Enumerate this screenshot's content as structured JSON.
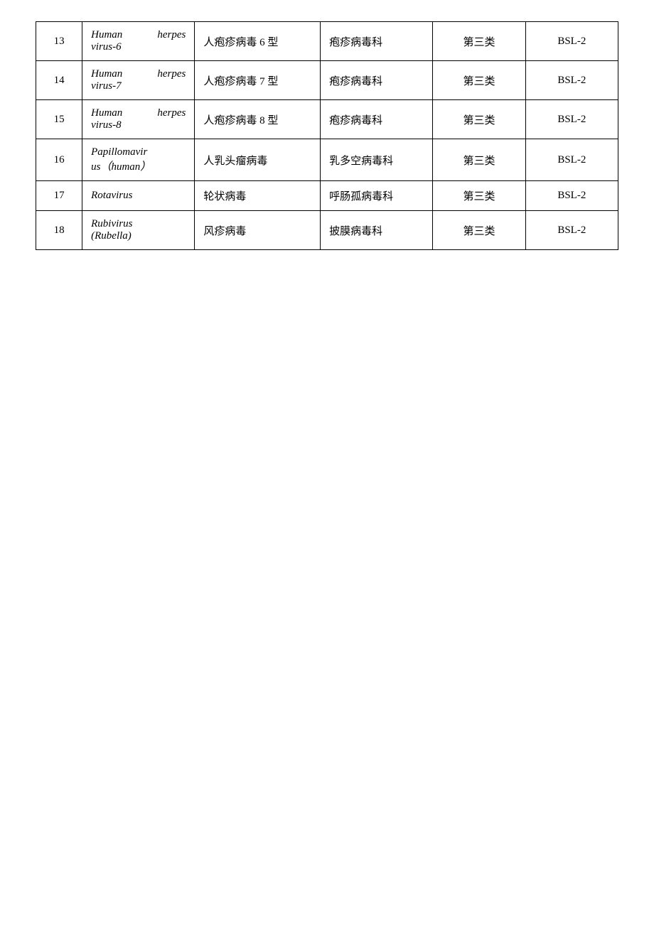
{
  "table": {
    "columns": {
      "num_width": "7%",
      "latin_width": "17%",
      "cn_name_width": "19%",
      "family_width": "17%",
      "class_width": "14%",
      "bsl_width": "14%"
    },
    "border_color": "#000000",
    "background_color": "#ffffff",
    "font_size": 15,
    "latin_font_style": "italic",
    "rows": [
      {
        "num": "13",
        "latin_line1": "Human herpes",
        "latin_line2": "virus-6",
        "cn_name": "人疱疹病毒 6 型",
        "family": "疱疹病毒科",
        "class": "第三类",
        "bsl": "BSL-2"
      },
      {
        "num": "14",
        "latin_line1": "Human herpes",
        "latin_line2": "virus-7",
        "cn_name": "人疱疹病毒 7 型",
        "family": "疱疹病毒科",
        "class": "第三类",
        "bsl": "BSL-2"
      },
      {
        "num": "15",
        "latin_line1": "Human herpes",
        "latin_line2": "virus-8",
        "cn_name": "人疱疹病毒 8 型",
        "family": "疱疹病毒科",
        "class": "第三类",
        "bsl": "BSL-2"
      },
      {
        "num": "16",
        "latin_line1": "Papillomavir",
        "latin_line2": "us（human）",
        "cn_name": "人乳头瘤病毒",
        "family": "乳多空病毒科",
        "class": "第三类",
        "bsl": "BSL-2"
      },
      {
        "num": "17",
        "latin_line1": "Rotavirus",
        "latin_line2": "",
        "cn_name": "轮状病毒",
        "family": "呼肠孤病毒科",
        "class": "第三类",
        "bsl": "BSL-2"
      },
      {
        "num": "18",
        "latin_line1": "Rubivirus",
        "latin_line2": "(Rubella)",
        "cn_name": "风疹病毒",
        "family": "披膜病毒科",
        "class": "第三类",
        "bsl": "BSL-2"
      }
    ]
  }
}
